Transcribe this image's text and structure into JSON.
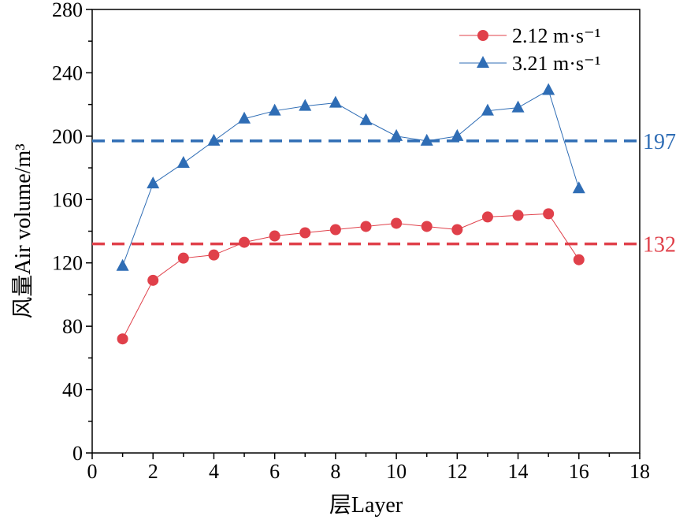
{
  "chart_data": {
    "type": "line",
    "title": "",
    "xlabel": "层Layer",
    "ylabel": "风量Air volume/m³",
    "xlim": [
      0,
      18
    ],
    "ylim": [
      0,
      280
    ],
    "xticks": [
      0,
      2,
      4,
      6,
      8,
      10,
      12,
      14,
      16,
      18
    ],
    "yticks": [
      0,
      40,
      80,
      120,
      160,
      200,
      240,
      280
    ],
    "x": [
      1,
      2,
      3,
      4,
      5,
      6,
      7,
      8,
      9,
      10,
      11,
      12,
      13,
      14,
      15,
      16
    ],
    "series": [
      {
        "name": "2.12 m·s⁻¹",
        "color": "#e0404a",
        "marker": "circle",
        "values": [
          72,
          109,
          123,
          125,
          133,
          137,
          139,
          141,
          143,
          145,
          143,
          141,
          149,
          150,
          151,
          122
        ]
      },
      {
        "name": "3.21 m·s⁻¹",
        "color": "#2f6db5",
        "marker": "triangle",
        "values": [
          118,
          170,
          183,
          197,
          211,
          216,
          219,
          221,
          210,
          200,
          197,
          200,
          216,
          218,
          229,
          167
        ]
      }
    ],
    "reference_lines": [
      {
        "value": 197,
        "label": "197",
        "color": "#2f6db5",
        "style": "dashed"
      },
      {
        "value": 132,
        "label": "132",
        "color": "#e0404a",
        "style": "dashed"
      }
    ],
    "legend_position": "top-right",
    "grid": false
  }
}
